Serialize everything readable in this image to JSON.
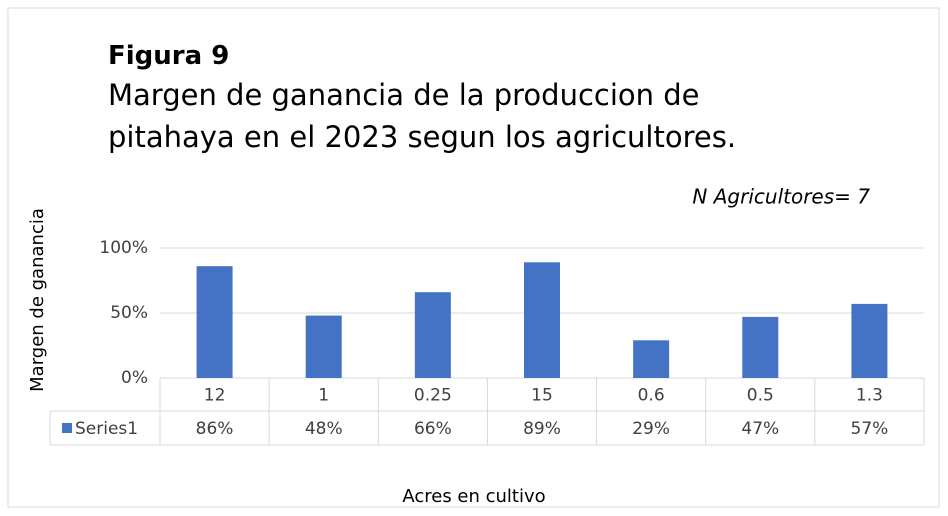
{
  "chart_data": {
    "type": "bar",
    "title": "Figura 9",
    "subtitle": "Margen de ganancia de la produccion de pitahaya en el 2023 segun los agricultores.",
    "annotation": "N Agricultores= 7",
    "y_label": "Margen de ganancia",
    "x_label": "Acres en cultivo",
    "categories": [
      "12",
      "1",
      "0.25",
      "15",
      "0.6",
      "0.5",
      "1.3"
    ],
    "series": [
      {
        "name": "Series1",
        "color": "#4472c4",
        "values": [
          86,
          48,
          66,
          89,
          29,
          47,
          57
        ],
        "value_labels": [
          "86%",
          "48%",
          "66%",
          "89%",
          "29%",
          "47%",
          "57%"
        ]
      }
    ],
    "ylim": [
      0,
      100
    ],
    "yticks": [
      {
        "value": 0,
        "label": "0%"
      },
      {
        "value": 50,
        "label": "50%"
      },
      {
        "value": 100,
        "label": "100%"
      }
    ],
    "grid": true
  }
}
